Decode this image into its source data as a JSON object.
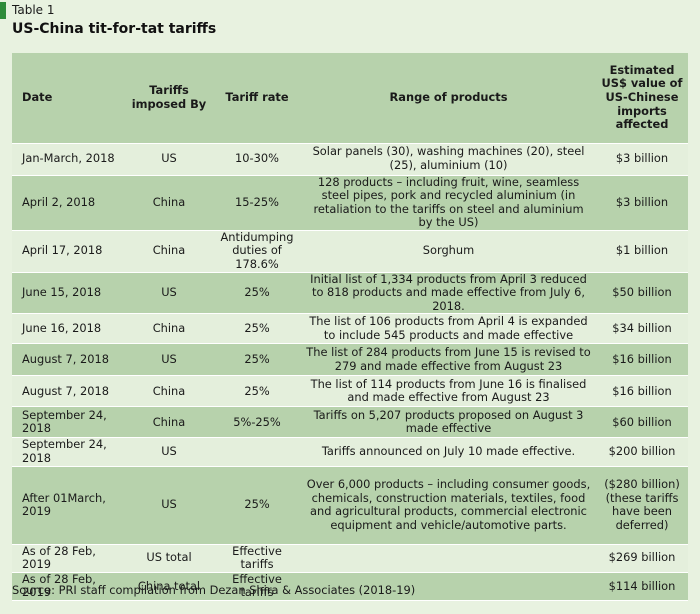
{
  "table_label": "Table 1",
  "title": "US-China tit-for-tat tariffs",
  "columns": {
    "date": "Date",
    "imposed_by": "Tariffs imposed By",
    "rate": "Tariff rate",
    "range": "Range of products",
    "value": "Estimated US$ value of US-Chinese imports affected"
  },
  "rows": [
    {
      "date": "Jan-March, 2018",
      "by": "US",
      "rate": "10-30%",
      "range": "Solar panels (30), washing machines (20), steel (25), aluminium (10)",
      "value": "$3 billion"
    },
    {
      "date": "April 2, 2018",
      "by": "China",
      "rate": "15-25%",
      "range": "128 products – including fruit, wine, seamless steel pipes, pork and recycled aluminium (in retaliation to the tariffs on steel and aluminium by the US)",
      "value": "$3 billion"
    },
    {
      "date": "April 17, 2018",
      "by": "China",
      "rate": "Antidumping duties of 178.6%",
      "range": "Sorghum",
      "value": "$1 billion"
    },
    {
      "date": "June 15, 2018",
      "by": "US",
      "rate": "25%",
      "range": "Initial list of 1,334 products from April 3 reduced to 818 products and made effective from July 6, 2018.",
      "value": "$50 billion"
    },
    {
      "date": "June 16, 2018",
      "by": "China",
      "rate": "25%",
      "range": "The list of 106 products from April 4 is expanded to include 545 products and made effective",
      "value": "$34 billion"
    },
    {
      "date": "August 7, 2018",
      "by": "US",
      "rate": "25%",
      "range": "The list of 284 products from June 15 is revised to 279 and made effective from August 23",
      "value": "$16 billion"
    },
    {
      "date": "August 7, 2018",
      "by": "China",
      "rate": "25%",
      "range": "The list of 114 products from June 16 is finalised and made effective from August 23",
      "value": "$16 billion"
    },
    {
      "date": "September 24, 2018",
      "by": "China",
      "rate": "5%-25%",
      "range": "Tariffs on 5,207 products proposed on August 3 made effective",
      "value": "$60 billion"
    },
    {
      "date": "September 24, 2018",
      "by": "US",
      "rate": "",
      "range": "Tariffs announced on July 10 made effective.",
      "value": "$200 billion"
    },
    {
      "date": "After 01March, 2019",
      "by": "US",
      "rate": "25%",
      "range": "Over 6,000 products – including consumer goods, chemicals, construction materials, textiles, food and agricultural products, commercial electronic equipment and vehicle/automotive parts.",
      "value": "($280 billion) (these tariffs have been deferred)"
    },
    {
      "date": "As of 28 Feb, 2019",
      "by": "US total",
      "rate": "Effective tariffs",
      "range": "",
      "value": "$269 billion"
    },
    {
      "date": "As of 28 Feb, 2019",
      "by": "China total",
      "rate": "Effective tariffs",
      "range": "",
      "value": "$114 billion"
    }
  ],
  "source": "Source: PRI staff compilation from Dezan Shira & Associates (2018-19)",
  "colors": {
    "accent": "#2e8b3a",
    "row_dark": "#b7d2ac",
    "row_light": "#e4efdc",
    "background": "#e8f2e0"
  }
}
